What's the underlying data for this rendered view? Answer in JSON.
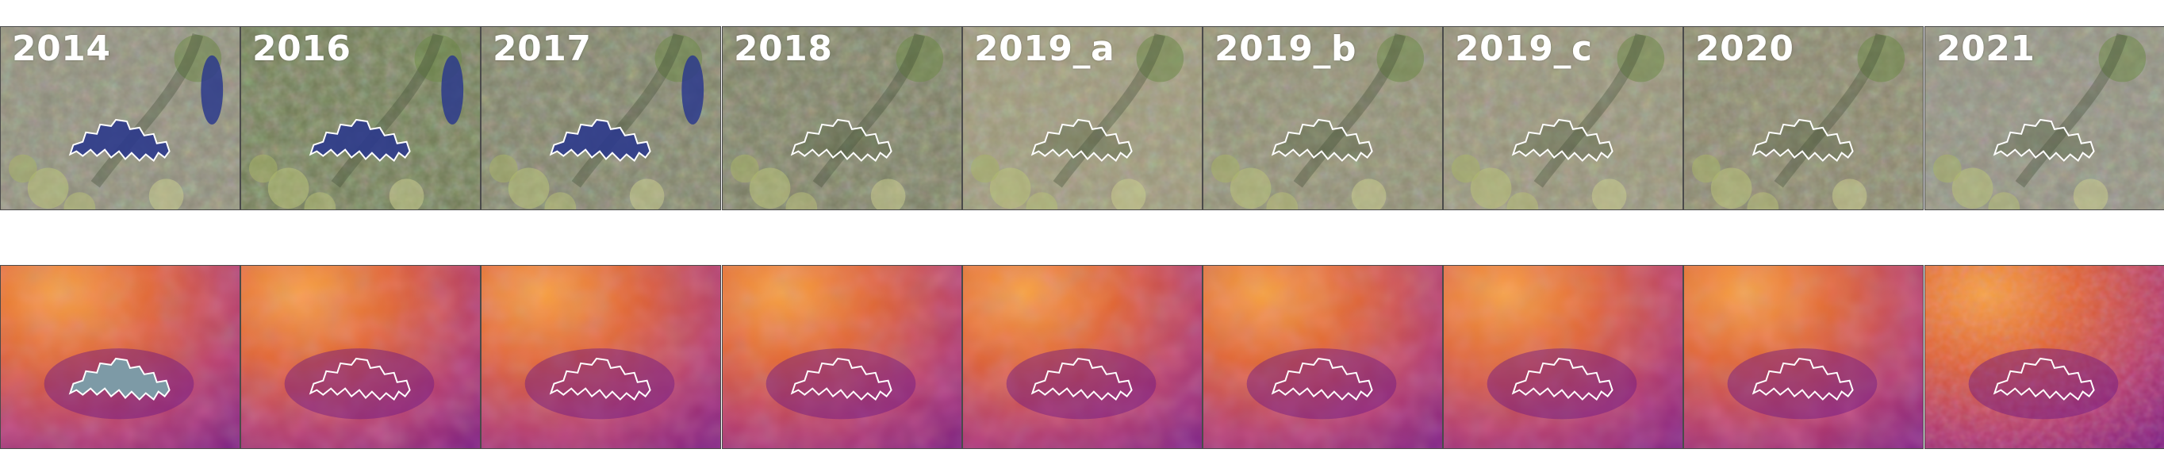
{
  "figure": {
    "years": [
      "2014",
      "2016",
      "2017",
      "2018",
      "2019_a",
      "2019_b",
      "2019_c",
      "2020",
      "2021"
    ],
    "rgb_row": {
      "tiles": [
        {
          "year": "2014",
          "water_pond_visible": true,
          "tone": "#8c8a7a"
        },
        {
          "year": "2016",
          "water_pond_visible": true,
          "tone": "#6f7a55"
        },
        {
          "year": "2017",
          "water_pond_visible": true,
          "tone": "#7d7f68"
        },
        {
          "year": "2018",
          "water_pond_visible": false,
          "tone": "#7a7c63"
        },
        {
          "year": "2019_a",
          "water_pond_visible": false,
          "tone": "#9a9478"
        },
        {
          "year": "2019_b",
          "water_pond_visible": false,
          "tone": "#8d8a72"
        },
        {
          "year": "2019_c",
          "water_pond_visible": false,
          "tone": "#948f78"
        },
        {
          "year": "2020",
          "water_pond_visible": false,
          "tone": "#87836b"
        },
        {
          "year": "2021",
          "water_pond_visible": false,
          "tone": "#8e8c80"
        }
      ]
    },
    "thermal_row": {
      "colormap": "inferno",
      "tiles": [
        {
          "year": "2014",
          "outline_filled": true,
          "fill_color": "#7d9aa6"
        },
        {
          "year": "2016",
          "outline_filled": false
        },
        {
          "year": "2017",
          "outline_filled": false
        },
        {
          "year": "2018",
          "outline_filled": false
        },
        {
          "year": "2019_a",
          "outline_filled": false
        },
        {
          "year": "2019_b",
          "outline_filled": false
        },
        {
          "year": "2019_c",
          "outline_filled": false
        },
        {
          "year": "2020",
          "outline_filled": false
        },
        {
          "year": "2021",
          "outline_filled": false
        }
      ]
    },
    "outline_color": "#ffffff",
    "water_color": "#2c3a8c"
  }
}
